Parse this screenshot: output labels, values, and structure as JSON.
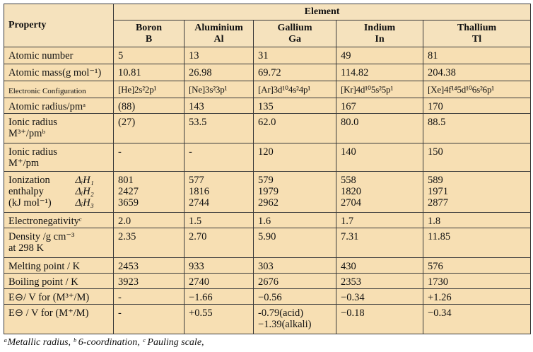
{
  "header": {
    "property": "Property",
    "element": "Element",
    "elements": [
      {
        "name": "Boron",
        "symbol": "B"
      },
      {
        "name": "Aluminium",
        "symbol": "Al"
      },
      {
        "name": "Gallium",
        "symbol": "Ga"
      },
      {
        "name": "Indium",
        "symbol": "In"
      },
      {
        "name": "Thallium",
        "symbol": "Tl"
      }
    ]
  },
  "rows": [
    {
      "property": [
        "Atomic number"
      ],
      "values": [
        [
          "5"
        ],
        [
          "13"
        ],
        [
          "31"
        ],
        [
          "49"
        ],
        [
          "81"
        ]
      ]
    },
    {
      "property": [
        "Atomic mass(g mol⁻¹)"
      ],
      "values": [
        [
          "10.81"
        ],
        [
          "26.98"
        ],
        [
          "69.72"
        ],
        [
          "114.82"
        ],
        [
          "204.38"
        ]
      ]
    },
    {
      "property": [
        "Electronic Configuration"
      ],
      "values": [
        [
          "[He]2s²2p¹"
        ],
        [
          "[Ne]3s²3p¹"
        ],
        [
          "[Ar]3d¹⁰4s²4p¹"
        ],
        [
          "[Kr]4d¹⁰5s²5p¹"
        ],
        [
          "[Xe]4f¹⁴5d¹⁰6s²6p¹"
        ]
      ]
    },
    {
      "property": [
        "Atomic radius/pmᵃ"
      ],
      "values": [
        [
          "(88)"
        ],
        [
          "143"
        ],
        [
          "135"
        ],
        [
          "167"
        ],
        [
          "170"
        ]
      ]
    },
    {
      "property": [
        "Ionic radius",
        "M³⁺/pmᵇ"
      ],
      "values": [
        [
          "(27)"
        ],
        [
          "53.5"
        ],
        [
          "62.0"
        ],
        [
          "80.0"
        ],
        [
          "88.5"
        ]
      ]
    },
    {
      "property": [
        "Ionic radius",
        "M⁺/pm"
      ],
      "values": [
        [
          "-"
        ],
        [
          "-"
        ],
        [
          "120"
        ],
        [
          "140"
        ],
        [
          "150"
        ]
      ]
    },
    {
      "property": [
        "Ionization",
        "enthalpy",
        "(kJ mol⁻¹)"
      ],
      "sublabels": [
        "ΔᵢH₁",
        "ΔᵢH₂",
        "ΔᵢH₃"
      ],
      "values": [
        [
          "801",
          "2427",
          "3659"
        ],
        [
          "577",
          "1816",
          "2744"
        ],
        [
          "579",
          "1979",
          "2962"
        ],
        [
          "558",
          "1820",
          "2704"
        ],
        [
          "589",
          "1971",
          "2877"
        ]
      ]
    },
    {
      "property": [
        "Electronegativityᶜ"
      ],
      "values": [
        [
          "2.0"
        ],
        [
          "1.5"
        ],
        [
          "1.6"
        ],
        [
          "1.7"
        ],
        [
          "1.8"
        ]
      ]
    },
    {
      "property": [
        "Density /g cm⁻³",
        "at 298 K"
      ],
      "values": [
        [
          "2.35"
        ],
        [
          "2.70"
        ],
        [
          "5.90"
        ],
        [
          "7.31"
        ],
        [
          "11.85"
        ]
      ]
    },
    {
      "property": [
        "Melting point / K"
      ],
      "values": [
        [
          "2453"
        ],
        [
          "933"
        ],
        [
          "303"
        ],
        [
          "430"
        ],
        [
          "576"
        ]
      ]
    },
    {
      "property": [
        "Boiling point / K"
      ],
      "values": [
        [
          "3923"
        ],
        [
          "2740"
        ],
        [
          "2676"
        ],
        [
          "2353"
        ],
        [
          "1730"
        ]
      ]
    },
    {
      "property": [
        "E⊖/ V for (M³⁺/M)"
      ],
      "values": [
        [
          "-"
        ],
        [
          "−1.66"
        ],
        [
          "−0.56"
        ],
        [
          "−0.34"
        ],
        [
          "+1.26"
        ]
      ]
    },
    {
      "property": [
        "E⊖ / V for (M⁺/M)"
      ],
      "values": [
        [
          "-"
        ],
        [
          "+0.55"
        ],
        [
          "-0.79(acid)",
          "−1.39(alkali)"
        ],
        [
          "−0.18"
        ],
        [
          "−0.34"
        ]
      ]
    }
  ],
  "footnote": "ᵃMetallic radius, ᵇ 6-coordination, ᶜ Pauling scale,"
}
